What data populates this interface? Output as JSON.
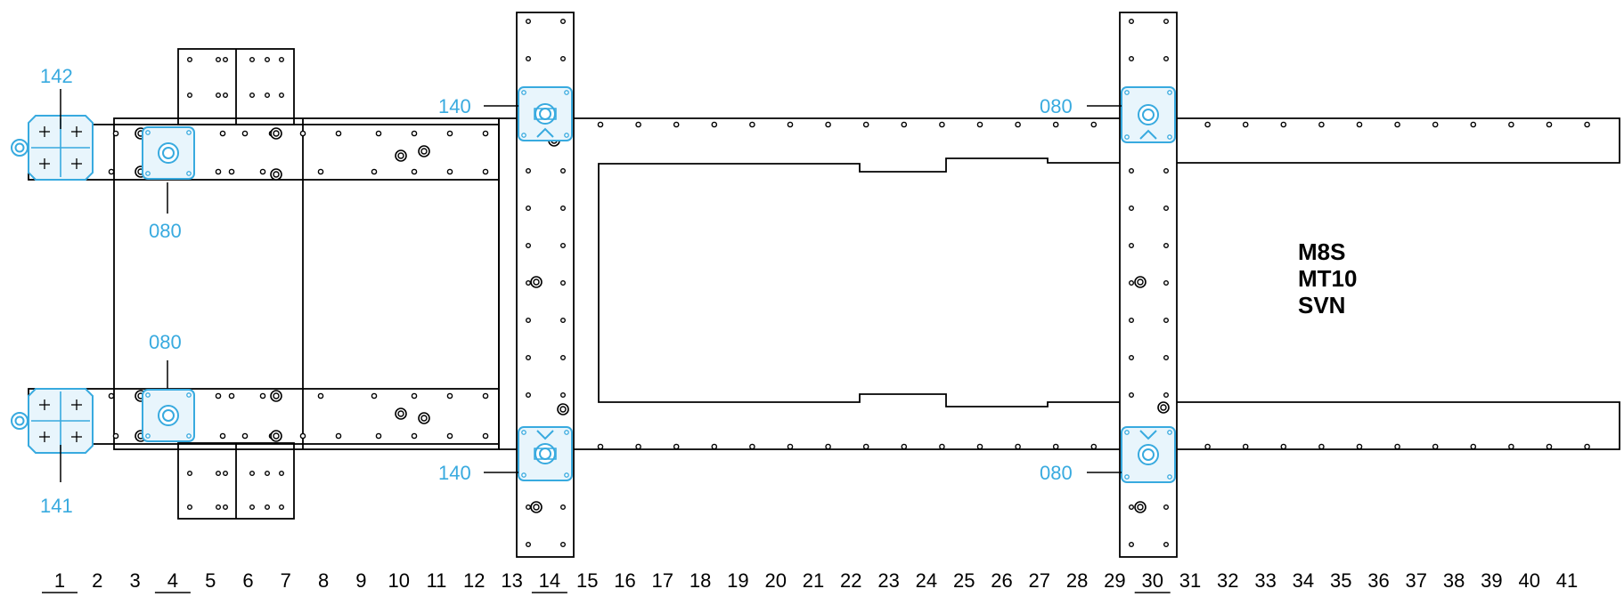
{
  "model_labels": [
    "M8S",
    "MT10",
    "SVN"
  ],
  "callouts": {
    "c142": "142",
    "c141": "141",
    "c080_a": "080",
    "c080_b": "080",
    "c140_top": "140",
    "c140_bottom": "140",
    "c080_top_right": "080",
    "c080_bottom_right": "080"
  },
  "hole_positions": [
    "1",
    "2",
    "3",
    "4",
    "5",
    "6",
    "7",
    "8",
    "9",
    "10",
    "11",
    "12",
    "13",
    "14",
    "15",
    "16",
    "17",
    "18",
    "19",
    "20",
    "21",
    "22",
    "23",
    "24",
    "25",
    "26",
    "27",
    "28",
    "29",
    "30",
    "31",
    "32",
    "33",
    "34",
    "35",
    "36",
    "37",
    "38",
    "39",
    "40",
    "41"
  ],
  "underlined_positions": [
    "1",
    "4",
    "14",
    "30"
  ],
  "colors": {
    "line": "#000000",
    "bracket": "#38aadf",
    "bracket_fill": "#e8f5fc",
    "callout": "#38aadf"
  }
}
